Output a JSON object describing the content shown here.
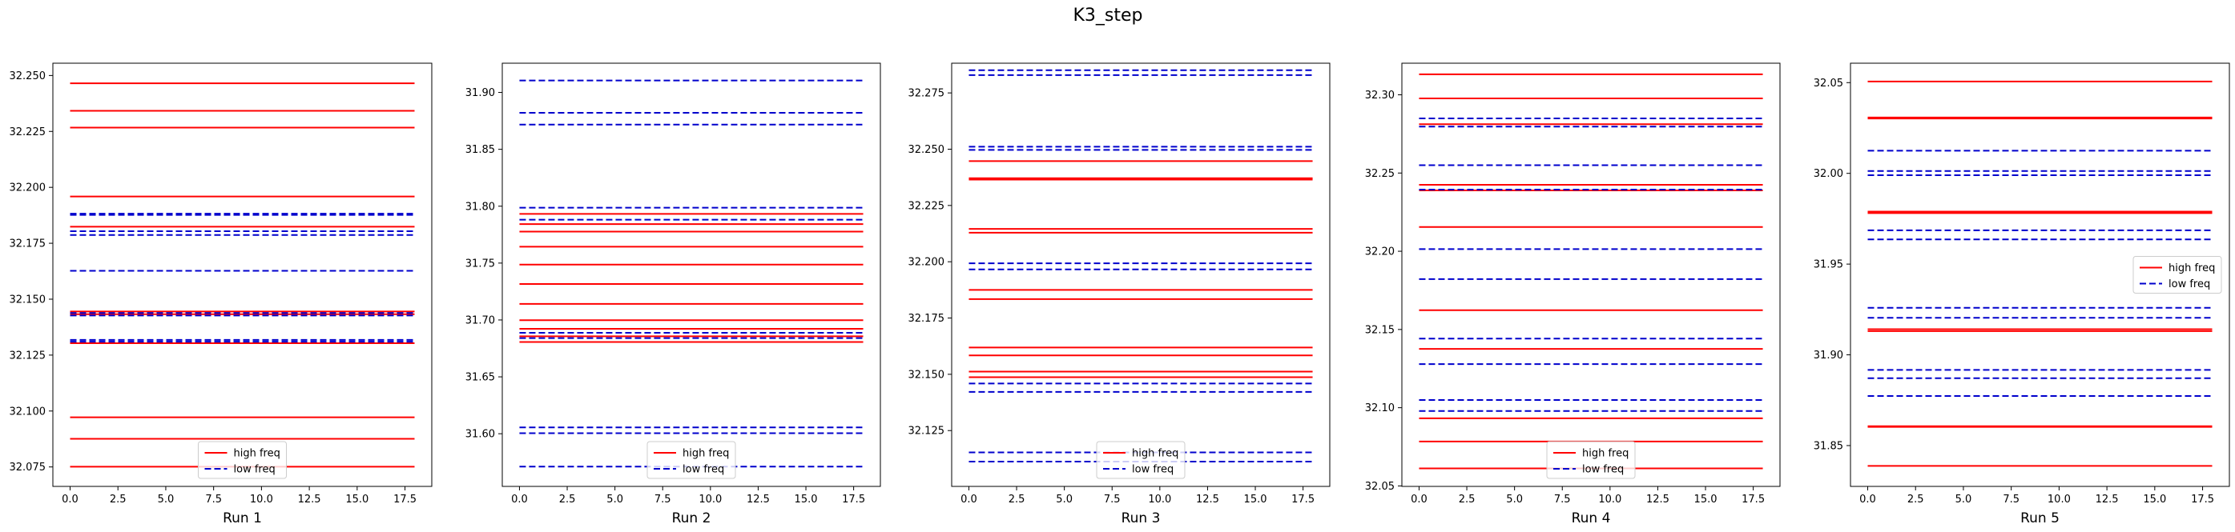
{
  "figure": {
    "title": "K3_step"
  },
  "legend": {
    "high_label": "high freq",
    "low_label": "low freq"
  },
  "colors": {
    "high": "#ff0000",
    "low": "#0000cc"
  },
  "chart_data": [
    {
      "type": "line",
      "title": "",
      "xlabel": "Run 1",
      "ylabel": "",
      "xlim": [
        -0.9,
        18.9
      ],
      "ylim": [
        32.0663,
        32.2555
      ],
      "xticks": [
        0.0,
        2.5,
        5.0,
        7.5,
        10.0,
        12.5,
        15.0,
        17.5
      ],
      "xtick_labels": [
        "0.0",
        "2.5",
        "5.0",
        "7.5",
        "10.0",
        "12.5",
        "15.0",
        "17.5"
      ],
      "yticks": [
        32.075,
        32.1,
        32.125,
        32.15,
        32.175,
        32.2,
        32.225,
        32.25
      ],
      "ytick_labels": [
        "32.075",
        "32.100",
        "32.125",
        "32.150",
        "32.175",
        "32.200",
        "32.225",
        "32.250"
      ],
      "x_range": [
        0,
        18
      ],
      "legend_location": "lower center",
      "high_freq": [
        32.2465,
        32.2342,
        32.2267,
        32.1959,
        32.1824,
        32.1445,
        32.1433,
        32.1303,
        32.0972,
        32.0876,
        32.0751
      ],
      "low_freq": [
        32.1882,
        32.1877,
        32.1804,
        32.1787,
        32.1627,
        32.1438,
        32.1427,
        32.1318,
        32.131
      ]
    },
    {
      "type": "line",
      "title": "",
      "xlabel": "Run 2",
      "ylabel": "",
      "xlim": [
        -0.9,
        18.9
      ],
      "ylim": [
        31.5537,
        31.9257
      ],
      "xticks": [
        0.0,
        2.5,
        5.0,
        7.5,
        10.0,
        12.5,
        15.0,
        17.5
      ],
      "xtick_labels": [
        "0.0",
        "2.5",
        "5.0",
        "7.5",
        "10.0",
        "12.5",
        "15.0",
        "17.5"
      ],
      "yticks": [
        31.6,
        31.65,
        31.7,
        31.75,
        31.8,
        31.85,
        31.9
      ],
      "ytick_labels": [
        "31.60",
        "31.65",
        "31.70",
        "31.75",
        "31.80",
        "31.85",
        "31.90"
      ],
      "x_range": [
        0,
        18
      ],
      "legend_location": "lower center",
      "high_freq": [
        31.7932,
        31.7843,
        31.7777,
        31.7644,
        31.7487,
        31.7316,
        31.7141,
        31.6998,
        31.6922,
        31.6856,
        31.6806
      ],
      "low_freq": [
        31.9105,
        31.8821,
        31.8717,
        31.7987,
        31.7881,
        31.6887,
        31.6841,
        31.6056,
        31.6005,
        31.5711
      ]
    },
    {
      "type": "line",
      "title": "",
      "xlabel": "Run 3",
      "ylabel": "",
      "xlim": [
        -0.9,
        18.9
      ],
      "ylim": [
        32.1002,
        32.2882
      ],
      "xticks": [
        0.0,
        2.5,
        5.0,
        7.5,
        10.0,
        12.5,
        15.0,
        17.5
      ],
      "xtick_labels": [
        "0.0",
        "2.5",
        "5.0",
        "7.5",
        "10.0",
        "12.5",
        "15.0",
        "17.5"
      ],
      "yticks": [
        32.125,
        32.15,
        32.175,
        32.2,
        32.225,
        32.25,
        32.275
      ],
      "ytick_labels": [
        "32.125",
        "32.150",
        "32.175",
        "32.200",
        "32.225",
        "32.250",
        "32.275"
      ],
      "x_range": [
        0,
        18
      ],
      "legend_location": "lower center",
      "high_freq": [
        32.2447,
        32.2371,
        32.2365,
        32.2146,
        32.2129,
        32.1875,
        32.1834,
        32.1619,
        32.1584,
        32.1512,
        32.1487
      ],
      "low_freq": [
        32.2851,
        32.2829,
        32.2511,
        32.2497,
        32.1993,
        32.1966,
        32.1459,
        32.1422,
        32.1153,
        32.1112
      ]
    },
    {
      "type": "line",
      "title": "",
      "xlabel": "Run 4",
      "ylabel": "",
      "xlim": [
        -0.9,
        18.9
      ],
      "ylim": [
        32.0497,
        32.3202
      ],
      "xticks": [
        0.0,
        2.5,
        5.0,
        7.5,
        10.0,
        12.5,
        15.0,
        17.5
      ],
      "xtick_labels": [
        "0.0",
        "2.5",
        "5.0",
        "7.5",
        "10.0",
        "12.5",
        "15.0",
        "17.5"
      ],
      "yticks": [
        32.05,
        32.1,
        32.15,
        32.2,
        32.25,
        32.3
      ],
      "ytick_labels": [
        "32.05",
        "32.10",
        "32.15",
        "32.20",
        "32.25",
        "32.30"
      ],
      "x_range": [
        0,
        18
      ],
      "legend_location": "lower center",
      "high_freq": [
        32.3131,
        32.2977,
        32.2812,
        32.2425,
        32.2389,
        32.2155,
        32.1623,
        32.1376,
        32.0932,
        32.0784,
        32.0612
      ],
      "low_freq": [
        32.2849,
        32.2797,
        32.255,
        32.2394,
        32.2014,
        32.1822,
        32.1442,
        32.1279,
        32.1049,
        32.0979
      ]
    },
    {
      "type": "line",
      "title": "",
      "xlabel": "Run 5",
      "ylabel": "",
      "xlim": [
        -0.9,
        18.9
      ],
      "ylim": [
        31.8275,
        32.0607
      ],
      "xticks": [
        0.0,
        2.5,
        5.0,
        7.5,
        10.0,
        12.5,
        15.0,
        17.5
      ],
      "xtick_labels": [
        "0.0",
        "2.5",
        "5.0",
        "7.5",
        "10.0",
        "12.5",
        "15.0",
        "17.5"
      ],
      "yticks": [
        31.85,
        31.9,
        31.95,
        32.0,
        32.05
      ],
      "ytick_labels": [
        "31.85",
        "31.90",
        "31.95",
        "32.00",
        "32.05"
      ],
      "x_range": [
        0,
        18
      ],
      "legend_location": "center right",
      "high_freq": [
        32.0506,
        32.0308,
        32.0302,
        31.9789,
        31.9781,
        31.9141,
        31.9131,
        31.8607,
        31.8603,
        31.8388
      ],
      "low_freq": [
        32.0125,
        32.0013,
        31.999,
        31.9686,
        31.9636,
        31.9259,
        31.9204,
        31.8917,
        31.8871,
        31.8773
      ]
    }
  ]
}
